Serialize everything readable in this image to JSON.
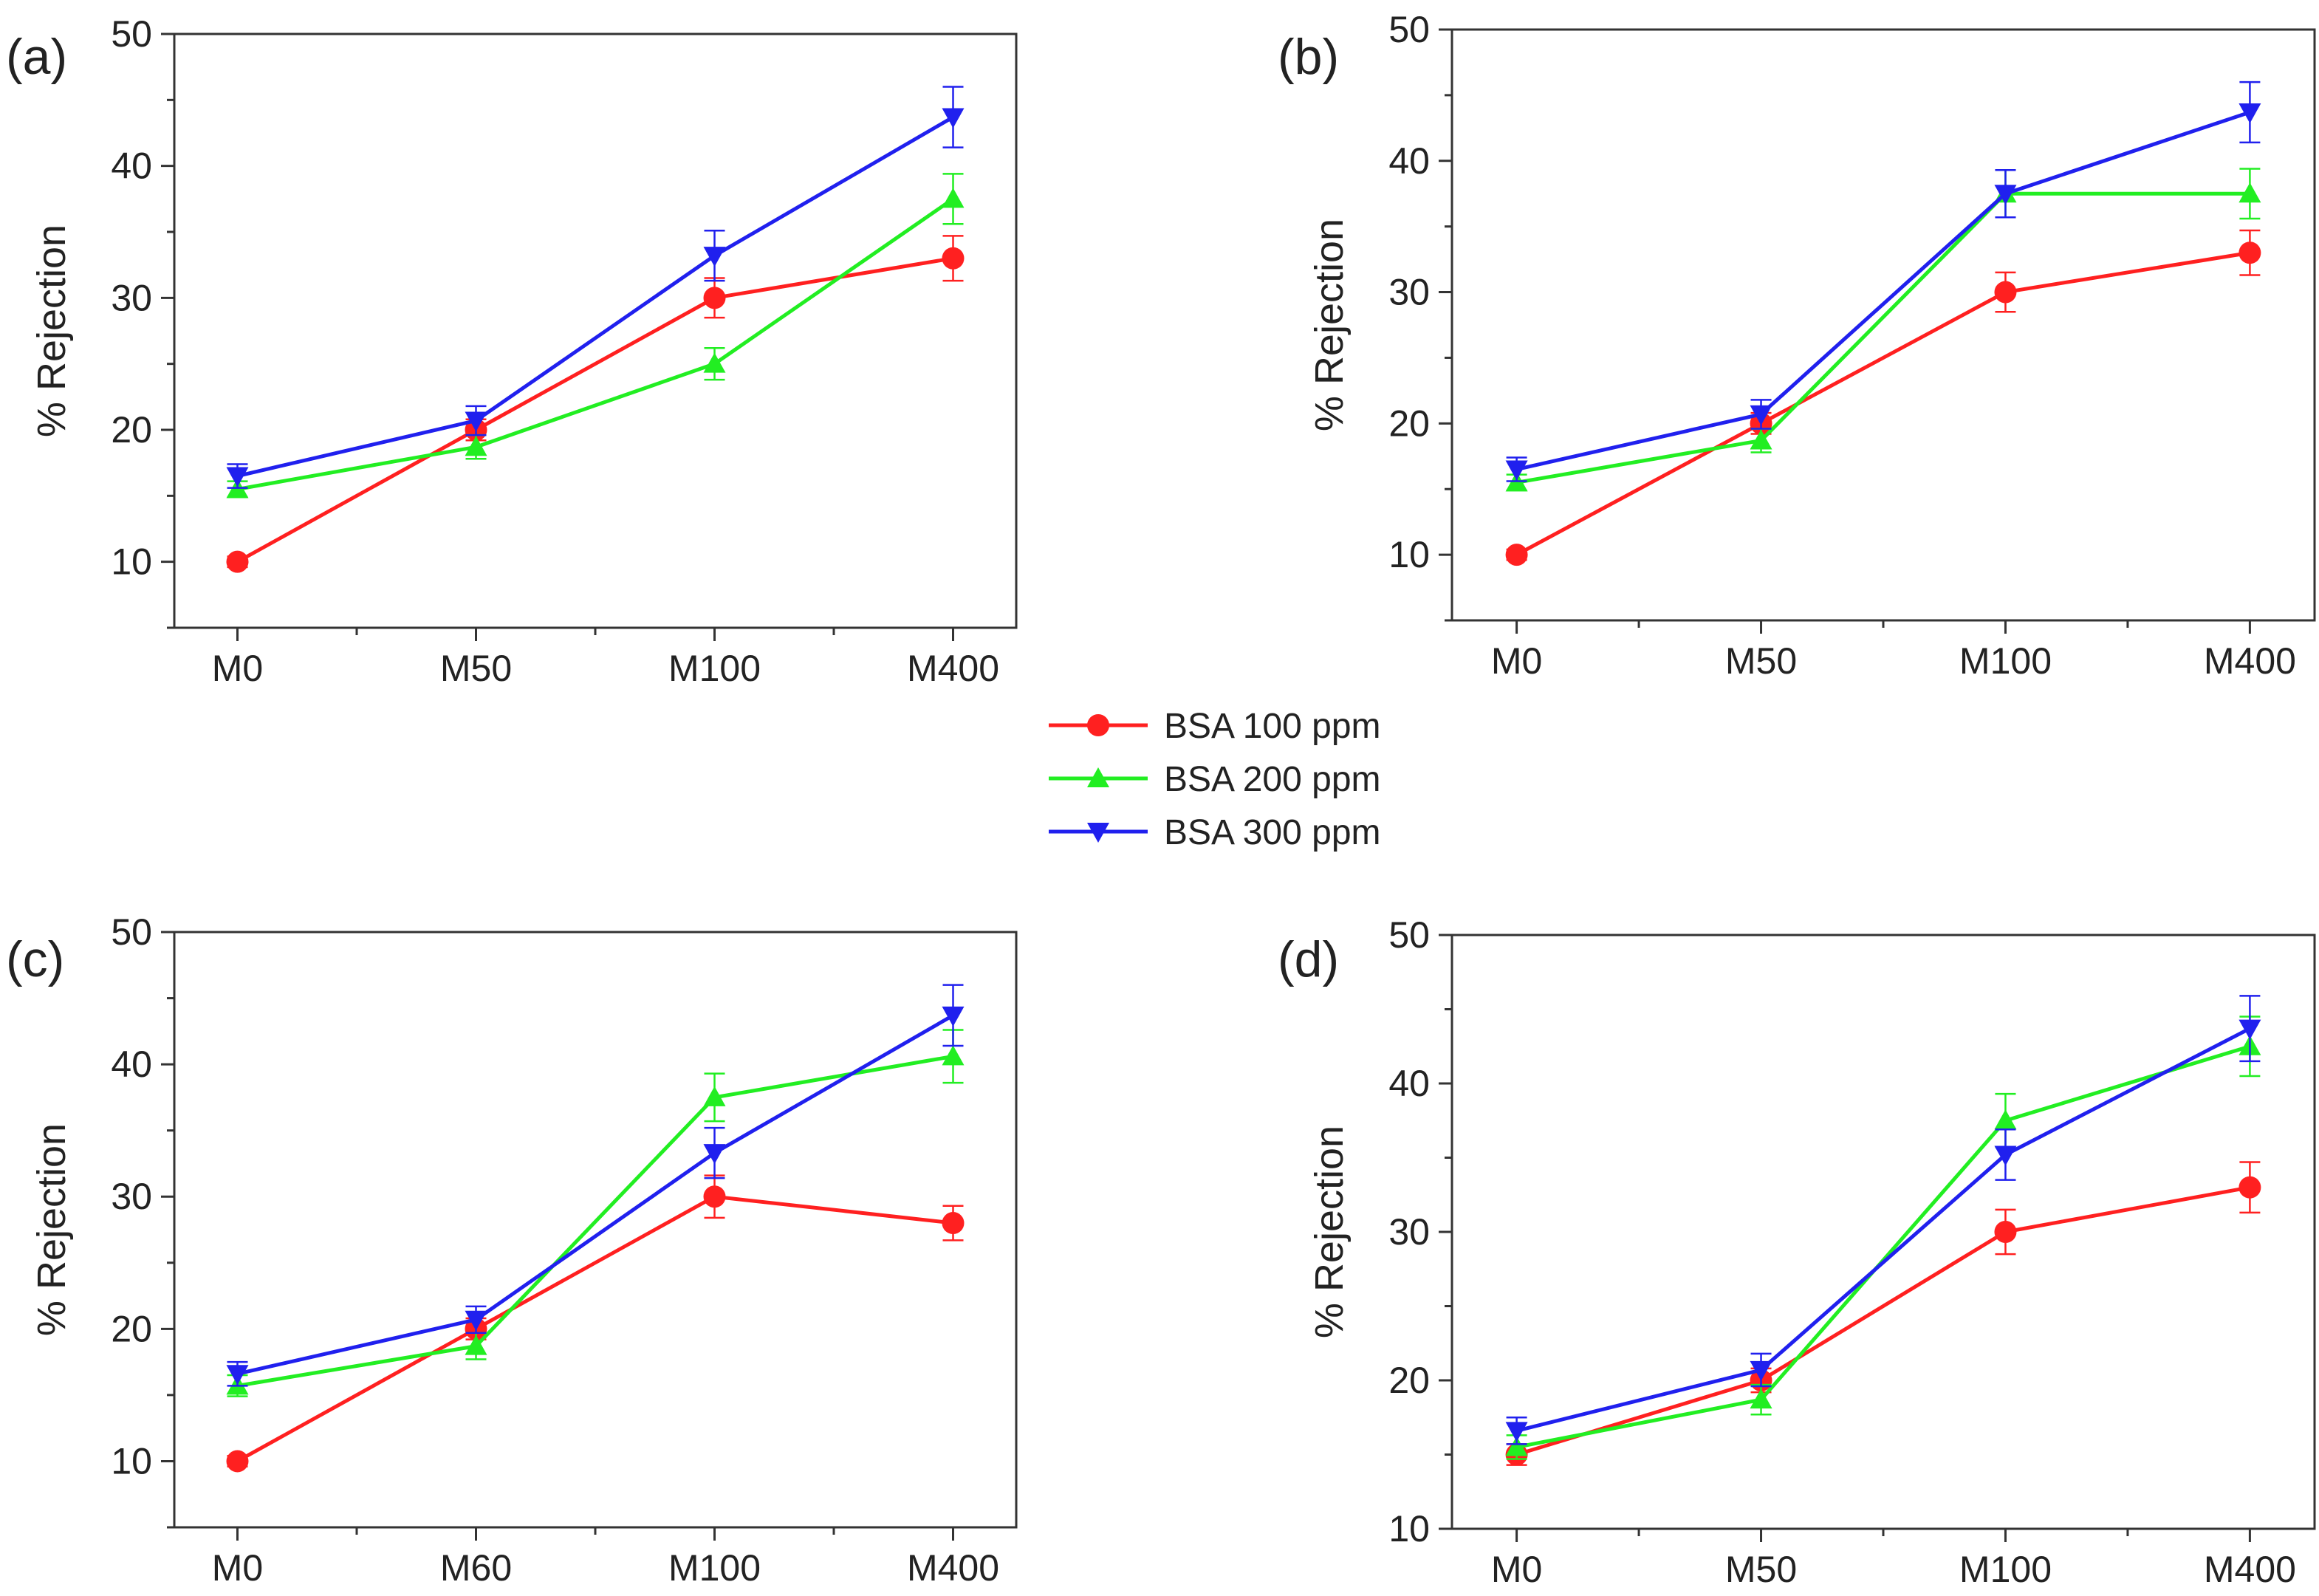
{
  "legend": {
    "entries": [
      {
        "label": "BSA 100 ppm",
        "color": "#ff2020",
        "marker": "circle"
      },
      {
        "label": "BSA 200 ppm",
        "color": "#22ee22",
        "marker": "triangle-up"
      },
      {
        "label": "BSA 300 ppm",
        "color": "#2020ee",
        "marker": "triangle-down"
      }
    ]
  },
  "chart_data": [
    {
      "type": "line",
      "panel_label": "(a)",
      "ylabel": "% Rejection",
      "categories": [
        "M0",
        "M50",
        "M100",
        "M400"
      ],
      "ylim": [
        5,
        50
      ],
      "yticks": [
        10,
        20,
        30,
        40,
        50
      ],
      "series": [
        {
          "name": "BSA 100 ppm",
          "values": [
            10,
            20,
            30,
            33
          ],
          "errors": [
            0.4,
            0.8,
            1.5,
            1.7
          ]
        },
        {
          "name": "BSA 200 ppm",
          "values": [
            15.5,
            18.7,
            25,
            37.5
          ],
          "errors": [
            0.6,
            0.9,
            1.2,
            1.9
          ]
        },
        {
          "name": "BSA 300 ppm",
          "values": [
            16.5,
            20.7,
            33.2,
            43.7
          ],
          "errors": [
            0.9,
            1.1,
            1.9,
            2.3
          ]
        }
      ]
    },
    {
      "type": "line",
      "panel_label": "(b)",
      "ylabel": "% Rejection",
      "categories": [
        "M0",
        "M50",
        "M100",
        "M400"
      ],
      "ylim": [
        5,
        50
      ],
      "yticks": [
        10,
        20,
        30,
        40,
        50
      ],
      "series": [
        {
          "name": "BSA 100 ppm",
          "values": [
            10,
            20,
            30,
            33
          ],
          "errors": [
            0.4,
            0.8,
            1.5,
            1.7
          ]
        },
        {
          "name": "BSA 200 ppm",
          "values": [
            15.5,
            18.7,
            37.5,
            37.5
          ],
          "errors": [
            0.6,
            0.9,
            1.8,
            1.9
          ]
        },
        {
          "name": "BSA 300 ppm",
          "values": [
            16.5,
            20.7,
            37.5,
            43.7
          ],
          "errors": [
            0.9,
            1.1,
            1.8,
            2.3
          ]
        }
      ]
    },
    {
      "type": "line",
      "panel_label": "(c)",
      "ylabel": "% Rejection",
      "categories": [
        "M0",
        "M60",
        "M100",
        "M400"
      ],
      "ylim": [
        5,
        50
      ],
      "yticks": [
        10,
        20,
        30,
        40,
        50
      ],
      "series": [
        {
          "name": "BSA 100 ppm",
          "values": [
            10,
            20,
            30,
            28
          ],
          "errors": [
            0.4,
            0.8,
            1.6,
            1.3
          ]
        },
        {
          "name": "BSA 200 ppm",
          "values": [
            15.7,
            18.7,
            37.5,
            40.6
          ],
          "errors": [
            0.8,
            1.0,
            1.8,
            2.0
          ]
        },
        {
          "name": "BSA 300 ppm",
          "values": [
            16.6,
            20.7,
            33.3,
            43.7
          ],
          "errors": [
            0.9,
            1.0,
            1.9,
            2.3
          ]
        }
      ]
    },
    {
      "type": "line",
      "panel_label": "(d)",
      "ylabel": "% Rejection",
      "categories": [
        "M0",
        "M50",
        "M100",
        "M400"
      ],
      "ylim": [
        10,
        50
      ],
      "yticks": [
        10,
        20,
        30,
        40,
        50
      ],
      "series": [
        {
          "name": "BSA 100 ppm",
          "values": [
            15,
            20,
            30,
            33
          ],
          "errors": [
            0.7,
            0.8,
            1.5,
            1.7
          ]
        },
        {
          "name": "BSA 200 ppm",
          "values": [
            15.5,
            18.7,
            37.5,
            42.5
          ],
          "errors": [
            0.8,
            1.0,
            1.8,
            2.0
          ]
        },
        {
          "name": "BSA 300 ppm",
          "values": [
            16.6,
            20.7,
            35.2,
            43.7
          ],
          "errors": [
            0.9,
            1.1,
            1.7,
            2.2
          ]
        }
      ]
    }
  ]
}
